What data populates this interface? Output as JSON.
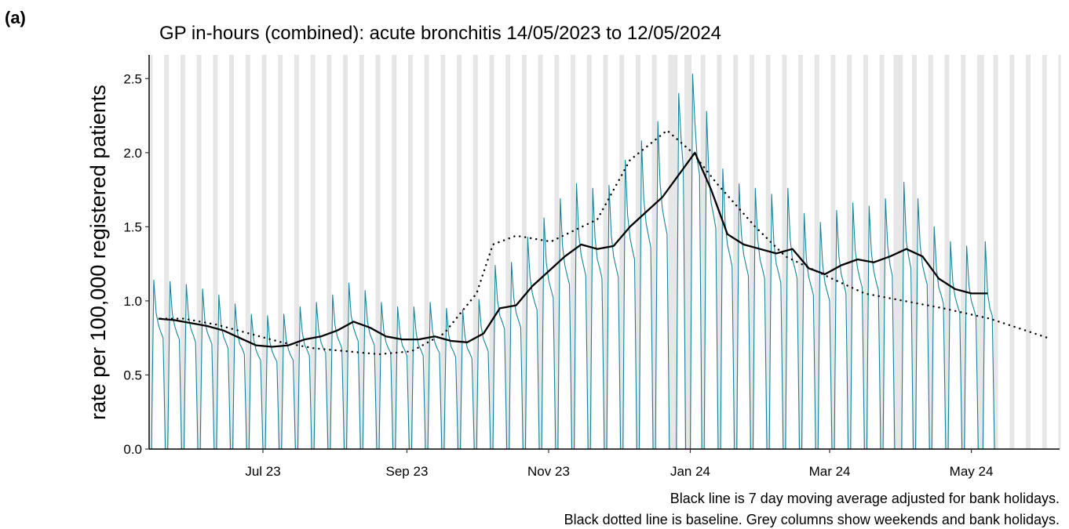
{
  "panel_label": "(a)",
  "chart_data": {
    "type": "line",
    "title": "GP in-hours (combined): acute bronchitis 14/05/2023 to 12/05/2024",
    "y_label": "rate per 100,000 registered patients",
    "notes": [
      "Black line is 7 day moving average adjusted for bank holidays.",
      "Black dotted line is baseline. Grey columns show weekends and bank holidays."
    ],
    "xlim": [
      -1,
      391
    ],
    "ylim": [
      0,
      2.66
    ],
    "xticks": [
      {
        "value": 48,
        "label": "Jul 23"
      },
      {
        "value": 110,
        "label": "Sep 23"
      },
      {
        "value": 171,
        "label": "Nov 23"
      },
      {
        "value": 232,
        "label": "Jan 24"
      },
      {
        "value": 292,
        "label": "Mar 24"
      },
      {
        "value": 353,
        "label": "May 24"
      }
    ],
    "yticks": [
      {
        "value": 0,
        "label": "0.0"
      },
      {
        "value": 0.5,
        "label": "0.5"
      },
      {
        "value": 1,
        "label": "1.0"
      },
      {
        "value": 1.5,
        "label": "1.5"
      },
      {
        "value": 2,
        "label": "2.0"
      },
      {
        "value": 2.5,
        "label": "2.5"
      }
    ],
    "shade_color": "#e6e6e6",
    "series": [
      {
        "color": "#15849a",
        "style": "solid",
        "width": 1.1,
        "x": [
          0,
          1,
          2,
          3,
          4,
          5,
          6,
          7,
          8,
          9,
          10,
          11,
          12,
          13,
          14,
          15,
          16,
          17,
          18,
          19,
          20,
          21,
          22,
          23,
          24,
          25,
          26,
          27,
          28,
          29,
          30,
          31,
          32,
          33,
          34,
          35,
          36,
          37,
          38,
          39,
          40,
          41,
          42,
          43,
          44,
          45,
          46,
          47,
          48,
          49,
          50,
          51,
          52,
          53,
          54,
          55,
          56,
          57,
          58,
          59,
          60,
          61,
          62,
          63,
          64,
          65,
          66,
          67,
          68,
          69,
          70,
          71,
          72,
          73,
          74,
          75,
          76,
          77,
          78,
          79,
          80,
          81,
          82,
          83,
          84,
          85,
          86,
          87,
          88,
          89,
          90,
          91,
          92,
          93,
          94,
          95,
          96,
          97,
          98,
          99,
          100,
          101,
          102,
          103,
          104,
          105,
          106,
          107,
          108,
          109,
          110,
          111,
          112,
          113,
          114,
          115,
          116,
          117,
          118,
          119,
          120,
          121,
          122,
          123,
          124,
          125,
          126,
          127,
          128,
          129,
          130,
          131,
          132,
          133,
          134,
          135,
          136,
          137,
          138,
          139,
          140,
          141,
          142,
          143,
          144,
          145,
          146,
          147,
          148,
          149,
          150,
          151,
          152,
          153,
          154,
          155,
          156,
          157,
          158,
          159,
          160,
          161,
          162,
          163,
          164,
          165,
          166,
          167,
          168,
          169,
          170,
          171,
          172,
          173,
          174,
          175,
          176,
          177,
          178,
          179,
          180,
          181,
          182,
          183,
          184,
          185,
          186,
          187,
          188,
          189,
          190,
          191,
          192,
          193,
          194,
          195,
          196,
          197,
          198,
          199,
          200,
          201,
          202,
          203,
          204,
          205,
          206,
          207,
          208,
          209,
          210,
          211,
          212,
          213,
          214,
          215,
          216,
          217,
          218,
          219,
          220,
          221,
          222,
          223,
          224,
          225,
          226,
          227,
          228,
          229,
          230,
          231,
          232,
          233,
          234,
          235,
          236,
          237,
          238,
          239,
          240,
          241,
          242,
          243,
          244,
          245,
          246,
          247,
          248,
          249,
          250,
          251,
          252,
          253,
          254,
          255,
          256,
          257,
          258,
          259,
          260,
          261,
          262,
          263,
          264,
          265,
          266,
          267,
          268,
          269,
          270,
          271,
          272,
          273,
          274,
          275,
          276,
          277,
          278,
          279,
          280,
          281,
          282,
          283,
          284,
          285,
          286,
          287,
          288,
          289,
          290,
          291,
          292,
          293,
          294,
          295,
          296,
          297,
          298,
          299,
          300,
          301,
          302,
          303,
          304,
          305,
          306,
          307,
          308,
          309,
          310,
          311,
          312,
          313,
          314,
          315,
          316,
          317,
          318,
          319,
          320,
          321,
          322,
          323,
          324,
          325,
          326,
          327,
          328,
          329,
          330,
          331,
          332,
          333,
          334,
          335,
          336,
          337,
          338,
          339,
          340,
          341,
          342,
          343,
          344,
          345,
          346,
          347,
          348,
          349,
          350,
          351,
          352,
          353,
          354,
          355,
          356,
          357,
          358,
          359,
          360,
          361,
          362,
          363,
          364
        ],
        "values": [
          0,
          1.14,
          0.92,
          0.84,
          0.79,
          0.75,
          0,
          0,
          1.13,
          0.91,
          0.83,
          0.78,
          0.74,
          0,
          0,
          1.11,
          0.89,
          0.81,
          0.77,
          0.72,
          0,
          0,
          1.08,
          0.87,
          0.79,
          0.75,
          0.71,
          0,
          0,
          1.04,
          0.84,
          0.76,
          0.72,
          0.68,
          0,
          0,
          0.98,
          0.79,
          0.71,
          0.68,
          0.64,
          0,
          0,
          0.91,
          0.74,
          0.67,
          0.63,
          0.6,
          0,
          0,
          0.9,
          0.72,
          0.66,
          0.62,
          0.59,
          0,
          0,
          0.91,
          0.74,
          0.67,
          0.63,
          0.6,
          0,
          0,
          0.96,
          0.78,
          0.7,
          0.67,
          0.63,
          0,
          0,
          0.99,
          0.8,
          0.72,
          0.68,
          0.65,
          0,
          0,
          1.04,
          0.84,
          0.76,
          0.72,
          0.68,
          0,
          0,
          1.12,
          0.9,
          0.82,
          0.77,
          0.73,
          0,
          0,
          1.07,
          0.86,
          0.78,
          0.74,
          0.7,
          0,
          0,
          0.99,
          0.8,
          0.72,
          0.68,
          0.65,
          0,
          0,
          0.96,
          0.78,
          0.7,
          0.67,
          0.63,
          0,
          0,
          0.96,
          0.78,
          0.7,
          0.67,
          0.63,
          0,
          0,
          0.99,
          0.8,
          0.72,
          0.68,
          0.65,
          0,
          0,
          0.95,
          0.77,
          0.69,
          0.66,
          0.62,
          0,
          0,
          0.94,
          0.76,
          0.68,
          0.65,
          0.61,
          0,
          0,
          1.01,
          0.82,
          0.74,
          0.7,
          0.66,
          0,
          0,
          1.24,
          1,
          0.9,
          0.86,
          0.81,
          0,
          0,
          1.26,
          1.02,
          0.92,
          0.87,
          0.82,
          0,
          0,
          1.43,
          1.16,
          1.05,
          0.99,
          0.94,
          0,
          0,
          1.56,
          1.26,
          1.14,
          1.08,
          1.02,
          0,
          0,
          1.69,
          1.37,
          1.24,
          1.17,
          1.11,
          0,
          0,
          1.79,
          1.45,
          1.31,
          1.24,
          1.17,
          0,
          0,
          1.76,
          1.42,
          1.28,
          1.22,
          1.15,
          0,
          0,
          1.78,
          1.44,
          1.3,
          1.23,
          1.16,
          0,
          0,
          1.95,
          1.58,
          1.43,
          1.35,
          1.28,
          0,
          0,
          2.08,
          1.68,
          1.52,
          1.44,
          1.36,
          0,
          0,
          2.21,
          1.79,
          1.62,
          1.53,
          1.45,
          0,
          0,
          0,
          0,
          2.4,
          2.1,
          1.9,
          0,
          0,
          0,
          2.53,
          2.2,
          1.95,
          1.85,
          0,
          0,
          2.28,
          1.84,
          1.66,
          1.58,
          1.49,
          0,
          0,
          1.89,
          1.52,
          1.38,
          1.31,
          1.23,
          0,
          0,
          1.79,
          1.45,
          1.31,
          1.24,
          1.17,
          0,
          0,
          1.76,
          1.42,
          1.28,
          1.22,
          1.15,
          0,
          0,
          1.72,
          1.39,
          1.25,
          1.19,
          1.12,
          0,
          0,
          1.76,
          1.42,
          1.28,
          1.22,
          1.15,
          0,
          0,
          1.59,
          1.28,
          1.16,
          1.1,
          1.04,
          0,
          0,
          1.53,
          1.24,
          1.12,
          1.06,
          1,
          0,
          0,
          1.61,
          1.3,
          1.18,
          1.12,
          1.05,
          0,
          0,
          1.66,
          1.34,
          1.22,
          1.15,
          1.09,
          0,
          0,
          1.64,
          1.32,
          1.2,
          1.13,
          1.07,
          0,
          0,
          1.69,
          1.37,
          1.24,
          1.17,
          0,
          0,
          0,
          0,
          1.8,
          1.4,
          1.3,
          1.22,
          0,
          0,
          1.69,
          1.37,
          1.24,
          1.17,
          1.11,
          0,
          0,
          1.5,
          1.21,
          1.09,
          1.04,
          0.98,
          0,
          0,
          1.4,
          1.13,
          1.03,
          0.97,
          0.92,
          0,
          0,
          1.37,
          1.1,
          1,
          0.95,
          0.89,
          0,
          0,
          0,
          1.4,
          1.05,
          0.95,
          0.9,
          0,
          0
        ]
      },
      {
        "color": "#000000",
        "style": "solid",
        "width": 2.3,
        "x": [
          3,
          10,
          17,
          24,
          31,
          38,
          45,
          52,
          59,
          66,
          73,
          80,
          87,
          94,
          101,
          108,
          115,
          122,
          129,
          136,
          143,
          150,
          157,
          164,
          171,
          178,
          185,
          192,
          199,
          206,
          213,
          220,
          227,
          234,
          241,
          248,
          255,
          262,
          269,
          276,
          283,
          290,
          297,
          304,
          311,
          318,
          325,
          332,
          339,
          346,
          353,
          360
        ],
        "values": [
          0.88,
          0.87,
          0.85,
          0.83,
          0.8,
          0.75,
          0.7,
          0.69,
          0.7,
          0.74,
          0.76,
          0.8,
          0.86,
          0.82,
          0.76,
          0.74,
          0.74,
          0.76,
          0.73,
          0.72,
          0.78,
          0.95,
          0.97,
          1.1,
          1.2,
          1.3,
          1.38,
          1.35,
          1.37,
          1.5,
          1.6,
          1.7,
          1.85,
          2,
          1.75,
          1.45,
          1.38,
          1.35,
          1.32,
          1.35,
          1.22,
          1.18,
          1.24,
          1.28,
          1.26,
          1.3,
          1.35,
          1.3,
          1.15,
          1.08,
          1.05,
          1.05
        ]
      },
      {
        "color": "#000000",
        "style": "dotted",
        "width": 2.4,
        "x": [
          4,
          14,
          28,
          42,
          56,
          70,
          84,
          98,
          112,
          126,
          140,
          147,
          157,
          172,
          192,
          206,
          222,
          233,
          243,
          260,
          273,
          293,
          307,
          341,
          361,
          386
        ],
        "values": [
          0.88,
          0.88,
          0.84,
          0.78,
          0.72,
          0.68,
          0.66,
          0.64,
          0.66,
          0.78,
          1.05,
          1.38,
          1.44,
          1.4,
          1.55,
          1.95,
          2.15,
          2,
          1.8,
          1.5,
          1.3,
          1.15,
          1.05,
          0.95,
          0.88,
          0.75
        ]
      }
    ]
  }
}
